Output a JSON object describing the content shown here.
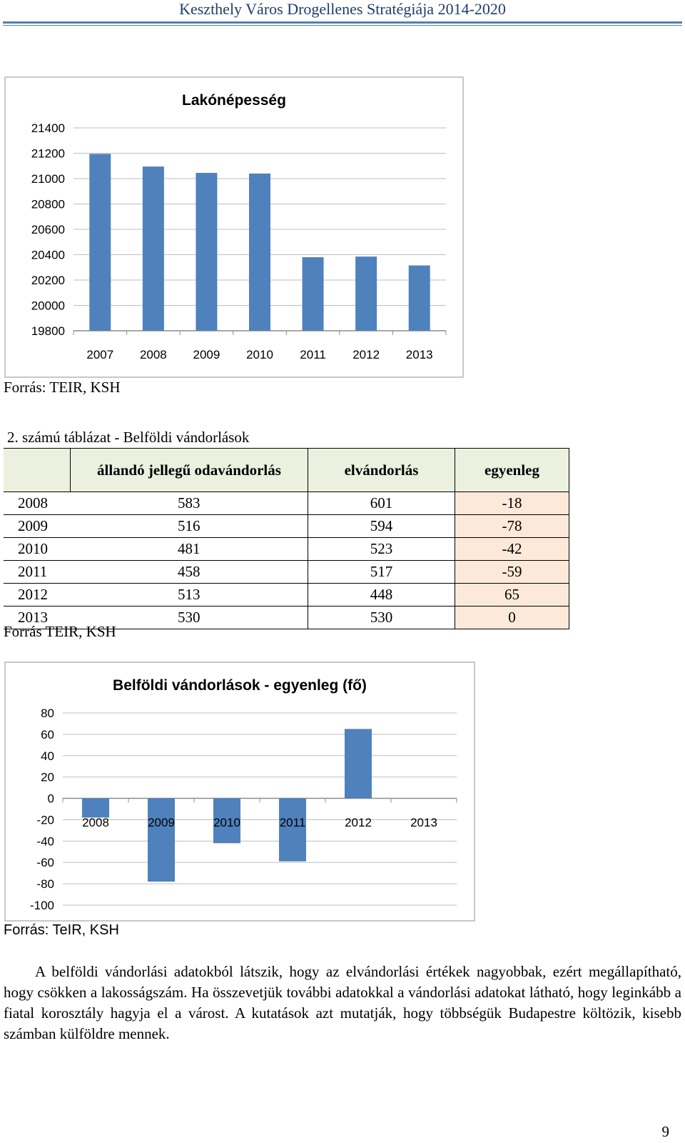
{
  "header": {
    "title": "Keszthely Város Drogellenes Stratégiája 2014-2020"
  },
  "chart_data": [
    {
      "type": "bar",
      "title": "Lakónépesség",
      "categories": [
        "2007",
        "2008",
        "2009",
        "2010",
        "2011",
        "2012",
        "2013"
      ],
      "values": [
        21195,
        21095,
        21045,
        21040,
        20380,
        20385,
        20315
      ],
      "ylim": [
        19800,
        21400
      ],
      "yticks": [
        "21400",
        "21200",
        "21000",
        "20800",
        "20600",
        "20400",
        "20200",
        "20000",
        "19800"
      ],
      "grid": true,
      "color": "#4f81bd"
    },
    {
      "type": "bar",
      "title": "Belföldi vándorlások - egyenleg (fő)",
      "categories": [
        "2008",
        "2009",
        "2010",
        "2011",
        "2012",
        "2013"
      ],
      "values": [
        -18,
        -78,
        -42,
        -59,
        65,
        0
      ],
      "ylim": [
        -100,
        80
      ],
      "yticks": [
        "80",
        "60",
        "40",
        "20",
        "0",
        "-20",
        "-40",
        "-60",
        "-80",
        "-100"
      ],
      "grid": true,
      "color": "#4f81bd"
    }
  ],
  "source1": "Forrás: TEIR, KSH",
  "table": {
    "caption": "2. számú táblázat - Belföldi vándorlások",
    "headers": [
      "",
      "állandó jellegű odavándorlás",
      "elvándorlás",
      "egyenleg"
    ],
    "rows": [
      [
        "2008",
        "583",
        "601",
        "-18"
      ],
      [
        "2009",
        "516",
        "594",
        "-78"
      ],
      [
        "2010",
        "481",
        "523",
        "-42"
      ],
      [
        "2011",
        "458",
        "517",
        "-59"
      ],
      [
        "2012",
        "513",
        "448",
        "65"
      ],
      [
        "2013",
        "530",
        "530",
        "0"
      ]
    ]
  },
  "source2": "Forrás TEIR, KSH",
  "source3": "Forrás: TeIR, KSH",
  "paragraph": "A belföldi vándorlási adatokból látszik, hogy az elvándorlási értékek nagyobbak, ezért megállapítható, hogy csökken a lakosságszám. Ha összevetjük további adatokkal a vándorlási adatokat látható, hogy leginkább a fiatal korosztály hagyja el a várost. A kutatások azt mutatják, hogy többségük Budapestre költözik, kisebb számban külföldre mennek.",
  "page_number": "9"
}
